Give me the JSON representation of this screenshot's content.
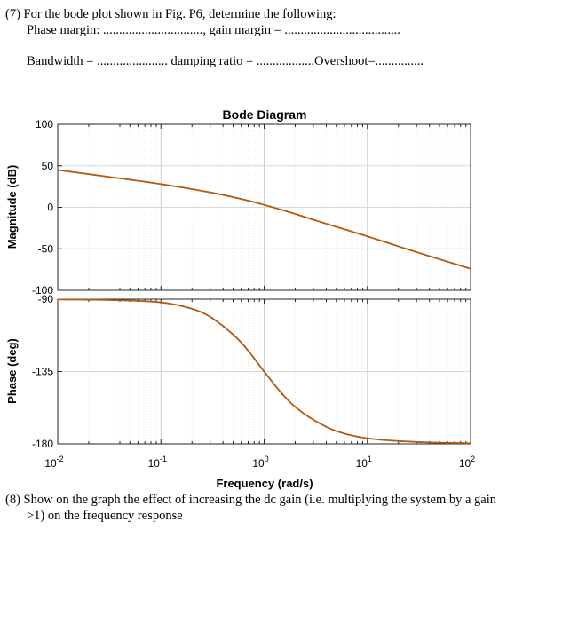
{
  "questions": {
    "q7_line1": "(7) For the bode plot shown in Fig. P6, determine the following:",
    "q7_line2": "Phase margin: ..............................., gain margin = ....................................",
    "q7_line3": "Bandwidth = ...................... damping ratio = ..................Overshoot=...............",
    "q8_line1": "(8) Show on the graph the effect of increasing the dc gain (i.e. multiplying the system by a gain",
    "q8_line2": ">1) on the frequency response"
  },
  "chart_data": {
    "type": "line",
    "title": "Bode Diagram",
    "xlabel": "Frequency  (rad/s)",
    "x_scale": "log",
    "xlim": [
      0.01,
      100
    ],
    "x_ticks": [
      {
        "base": "10",
        "exp": "-2"
      },
      {
        "base": "10",
        "exp": "-1"
      },
      {
        "base": "10",
        "exp": "0"
      },
      {
        "base": "10",
        "exp": "1"
      },
      {
        "base": "10",
        "exp": "2"
      }
    ],
    "grid": true,
    "color": "#b5580c",
    "panels": [
      {
        "name": "magnitude",
        "ylabel": "Magnitude (dB)",
        "ylim": [
          -100,
          100
        ],
        "y_ticks": [
          "100",
          "50",
          "0",
          "-50",
          "-100"
        ],
        "series": [
          {
            "x": [
              0.01,
              0.03,
              0.1,
              0.3,
              0.6,
              1,
              2,
              3,
              10,
              30,
              100
            ],
            "y": [
              45,
              37,
              28,
              18,
              10,
              3,
              -8,
              -15,
              -35,
              -54,
              -74
            ]
          }
        ]
      },
      {
        "name": "phase",
        "ylabel": "Phase (deg)",
        "ylim": [
          -180,
          -90
        ],
        "y_ticks": [
          "-90",
          "-135",
          "-180"
        ],
        "series": [
          {
            "x": [
              0.01,
              0.03,
              0.1,
              0.2,
              0.3,
              0.5,
              0.7,
              1,
              1.5,
              2,
              3,
              5,
              10,
              30,
              100
            ],
            "y": [
              -90.2,
              -90.5,
              -92,
              -96,
              -101,
              -112,
              -122,
              -135,
              -149,
              -157,
              -165,
              -172,
              -176.5,
              -178.8,
              -179.6
            ]
          }
        ]
      }
    ]
  }
}
